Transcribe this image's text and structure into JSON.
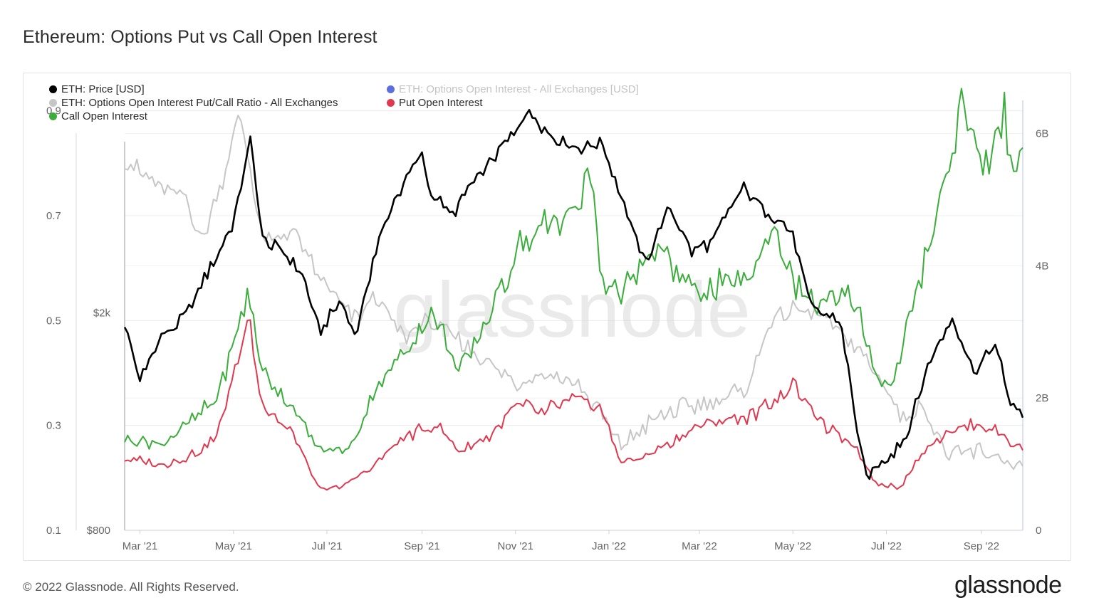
{
  "title": "Ethereum: Options Put vs Call Open Interest",
  "footer": {
    "copyright": "© 2022 Glassnode. All Rights Reserved.",
    "brand": "glassnode"
  },
  "watermark": "glassnode",
  "legend": [
    {
      "label": "ETH: Price [USD]",
      "color": "#000000",
      "muted": false
    },
    {
      "label": "ETH: Options Open Interest - All Exchanges [USD]",
      "color": "#5b6fe0",
      "muted": true
    },
    {
      "label": "ETH: Options Open Interest Put/Call Ratio - All Exchanges",
      "color": "#c6c6c6",
      "muted": false
    },
    {
      "label": "Put Open Interest",
      "color": "#e0384f",
      "muted": false
    },
    {
      "label": "Call Open Interest",
      "color": "#3aad3a",
      "muted": false
    }
  ],
  "chart_data": {
    "type": "line",
    "x_ticks": [
      "Mar '21",
      "May '21",
      "Jul '21",
      "Sep '21",
      "Nov '21",
      "Jan '22",
      "Mar '22",
      "May '22",
      "Jul '22",
      "Sep '22"
    ],
    "x_range": [
      "2021-02-19",
      "2022-09-28"
    ],
    "ratio_axis": {
      "ticks": [
        "0.9",
        "0.7",
        "0.5",
        "0.3",
        "0.1"
      ],
      "range": [
        0.1,
        0.92
      ]
    },
    "price_axis": {
      "ticks": [
        "$2k",
        "$800"
      ],
      "scale": "log",
      "range": [
        800,
        4900
      ]
    },
    "usd_axis": {
      "ticks": [
        "6B",
        "4B",
        "2B",
        "0"
      ],
      "range": [
        0,
        6500000000.0
      ]
    },
    "series": [
      {
        "name": "ETH: Price [USD]",
        "axis": "price",
        "color": "#000000",
        "x": [
          "2021-02-19",
          "2021-03-01",
          "2021-03-15",
          "2021-04-01",
          "2021-04-15",
          "2021-05-01",
          "2021-05-12",
          "2021-05-20",
          "2021-06-01",
          "2021-06-15",
          "2021-06-26",
          "2021-07-10",
          "2021-07-20",
          "2021-08-01",
          "2021-08-15",
          "2021-09-01",
          "2021-09-07",
          "2021-09-21",
          "2021-10-01",
          "2021-10-15",
          "2021-11-01",
          "2021-11-09",
          "2021-11-25",
          "2021-12-10",
          "2021-12-27",
          "2022-01-10",
          "2022-01-24",
          "2022-02-10",
          "2022-02-24",
          "2022-03-10",
          "2022-03-29",
          "2022-04-15",
          "2022-05-01",
          "2022-05-12",
          "2022-05-31",
          "2022-06-13",
          "2022-06-18",
          "2022-07-01",
          "2022-07-15",
          "2022-08-01",
          "2022-08-13",
          "2022-08-28",
          "2022-09-10",
          "2022-09-20",
          "2022-09-28"
        ],
        "values": [
          1900,
          1500,
          1800,
          2000,
          2400,
          2900,
          4100,
          2700,
          2600,
          2350,
          1850,
          2100,
          1800,
          2550,
          3250,
          3900,
          3300,
          3000,
          3400,
          3750,
          4300,
          4700,
          4200,
          4000,
          4100,
          3200,
          2450,
          3100,
          2600,
          2700,
          3400,
          3050,
          2800,
          2050,
          1950,
          1150,
          1000,
          1080,
          1200,
          1700,
          1950,
          1550,
          1750,
          1350,
          1300
        ]
      },
      {
        "name": "ETH: Options Open Interest Put/Call Ratio - All Exchanges",
        "axis": "ratio",
        "color": "#c6c6c6",
        "x": [
          "2021-02-19",
          "2021-03-15",
          "2021-04-01",
          "2021-04-10",
          "2021-04-25",
          "2021-05-05",
          "2021-05-20",
          "2021-06-10",
          "2021-06-26",
          "2021-07-20",
          "2021-08-01",
          "2021-08-20",
          "2021-09-05",
          "2021-09-25",
          "2021-10-15",
          "2021-11-01",
          "2021-11-20",
          "2021-12-10",
          "2021-12-27",
          "2022-01-10",
          "2022-02-01",
          "2022-03-01",
          "2022-04-01",
          "2022-04-15",
          "2022-05-01",
          "2022-05-20",
          "2022-06-10",
          "2022-06-25",
          "2022-07-10",
          "2022-07-25",
          "2022-08-10",
          "2022-09-01",
          "2022-09-28"
        ],
        "values": [
          0.81,
          0.75,
          0.73,
          0.65,
          0.78,
          0.9,
          0.65,
          0.67,
          0.58,
          0.5,
          0.55,
          0.47,
          0.5,
          0.46,
          0.42,
          0.38,
          0.4,
          0.38,
          0.32,
          0.26,
          0.32,
          0.34,
          0.37,
          0.49,
          0.52,
          0.51,
          0.45,
          0.4,
          0.32,
          0.34,
          0.24,
          0.25,
          0.22
        ]
      },
      {
        "name": "Put Open Interest",
        "axis": "usd",
        "color": "#e0384f",
        "x": [
          "2021-02-19",
          "2021-03-15",
          "2021-04-01",
          "2021-04-20",
          "2021-05-11",
          "2021-05-20",
          "2021-06-10",
          "2021-06-26",
          "2021-07-15",
          "2021-08-01",
          "2021-08-20",
          "2021-09-10",
          "2021-09-25",
          "2021-10-15",
          "2021-11-01",
          "2021-11-20",
          "2021-12-10",
          "2021-12-27",
          "2022-01-10",
          "2022-02-01",
          "2022-03-01",
          "2022-04-01",
          "2022-04-20",
          "2022-05-01",
          "2022-05-20",
          "2022-06-10",
          "2022-06-25",
          "2022-07-10",
          "2022-07-25",
          "2022-08-10",
          "2022-09-01",
          "2022-09-28"
        ],
        "values": [
          1100000000.0,
          1000000000.0,
          1100000000.0,
          1400000000.0,
          3200000000.0,
          1900000000.0,
          1400000000.0,
          600000000.0,
          700000000.0,
          1000000000.0,
          1400000000.0,
          1600000000.0,
          1200000000.0,
          1400000000.0,
          1900000000.0,
          1800000000.0,
          2000000000.0,
          1800000000.0,
          1000000000.0,
          1200000000.0,
          1600000000.0,
          1700000000.0,
          2000000000.0,
          2200000000.0,
          1600000000.0,
          1300000000.0,
          700000000.0,
          650000000.0,
          1200000000.0,
          1500000000.0,
          1600000000.0,
          1250000000.0
        ]
      },
      {
        "name": "Call Open Interest",
        "axis": "usd",
        "color": "#3aad3a",
        "x": [
          "2021-02-19",
          "2021-03-15",
          "2021-04-01",
          "2021-04-20",
          "2021-05-11",
          "2021-05-20",
          "2021-06-10",
          "2021-06-26",
          "2021-07-15",
          "2021-08-01",
          "2021-08-20",
          "2021-09-10",
          "2021-09-25",
          "2021-10-15",
          "2021-11-01",
          "2021-11-20",
          "2021-12-10",
          "2021-12-20",
          "2021-12-27",
          "2022-01-10",
          "2022-02-01",
          "2022-03-01",
          "2022-04-01",
          "2022-04-20",
          "2022-05-01",
          "2022-05-20",
          "2022-06-10",
          "2022-06-25",
          "2022-07-05",
          "2022-07-25",
          "2022-08-10",
          "2022-08-20",
          "2022-09-01",
          "2022-09-15",
          "2022-09-28"
        ],
        "values": [
          1400000000.0,
          1300000000.0,
          1600000000.0,
          2000000000.0,
          3600000000.0,
          2400000000.0,
          1800000000.0,
          1200000000.0,
          1200000000.0,
          2100000000.0,
          2700000000.0,
          3300000000.0,
          2400000000.0,
          3200000000.0,
          4200000000.0,
          4600000000.0,
          4800000000.0,
          5500000000.0,
          3800000000.0,
          3600000000.0,
          4200000000.0,
          3600000000.0,
          3800000000.0,
          4600000000.0,
          3800000000.0,
          3400000000.0,
          3500000000.0,
          2300000000.0,
          2200000000.0,
          4000000000.0,
          5600000000.0,
          6500000000.0,
          5400000000.0,
          6200000000.0,
          5500000000.0
        ]
      }
    ]
  }
}
